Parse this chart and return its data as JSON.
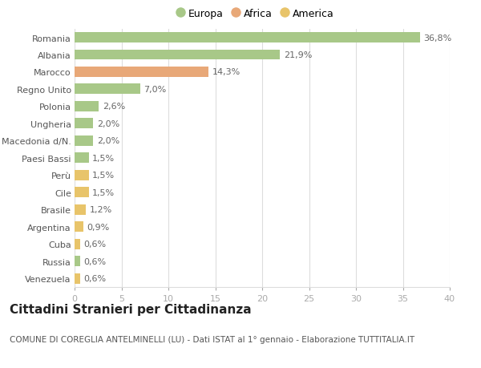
{
  "categories": [
    "Venezuela",
    "Russia",
    "Cuba",
    "Argentina",
    "Brasile",
    "Cile",
    "Perù",
    "Paesi Bassi",
    "Macedonia d/N.",
    "Ungheria",
    "Polonia",
    "Regno Unito",
    "Marocco",
    "Albania",
    "Romania"
  ],
  "values": [
    0.6,
    0.6,
    0.6,
    0.9,
    1.2,
    1.5,
    1.5,
    1.5,
    2.0,
    2.0,
    2.6,
    7.0,
    14.3,
    21.9,
    36.8
  ],
  "labels": [
    "0,6%",
    "0,6%",
    "0,6%",
    "0,9%",
    "1,2%",
    "1,5%",
    "1,5%",
    "1,5%",
    "2,0%",
    "2,0%",
    "2,6%",
    "7,0%",
    "14,3%",
    "21,9%",
    "36,8%"
  ],
  "colors": [
    "#e8c46a",
    "#a8c888",
    "#e8c46a",
    "#e8c46a",
    "#e8c46a",
    "#e8c46a",
    "#e8c46a",
    "#a8c888",
    "#a8c888",
    "#a8c888",
    "#a8c888",
    "#a8c888",
    "#e8a878",
    "#a8c888",
    "#a8c888"
  ],
  "legend_labels": [
    "Europa",
    "Africa",
    "America"
  ],
  "legend_colors": [
    "#a8c888",
    "#e8a878",
    "#e8c46a"
  ],
  "title": "Cittadini Stranieri per Cittadinanza",
  "subtitle": "COMUNE DI COREGLIA ANTELMINELLI (LU) - Dati ISTAT al 1° gennaio - Elaborazione TUTTITALIA.IT",
  "xlim": [
    0,
    40
  ],
  "xticks": [
    0,
    5,
    10,
    15,
    20,
    25,
    30,
    35,
    40
  ],
  "bg_color": "#ffffff",
  "grid_color": "#dddddd",
  "bar_height": 0.6,
  "label_fontsize": 8,
  "title_fontsize": 11,
  "subtitle_fontsize": 7.5,
  "tick_fontsize": 8
}
